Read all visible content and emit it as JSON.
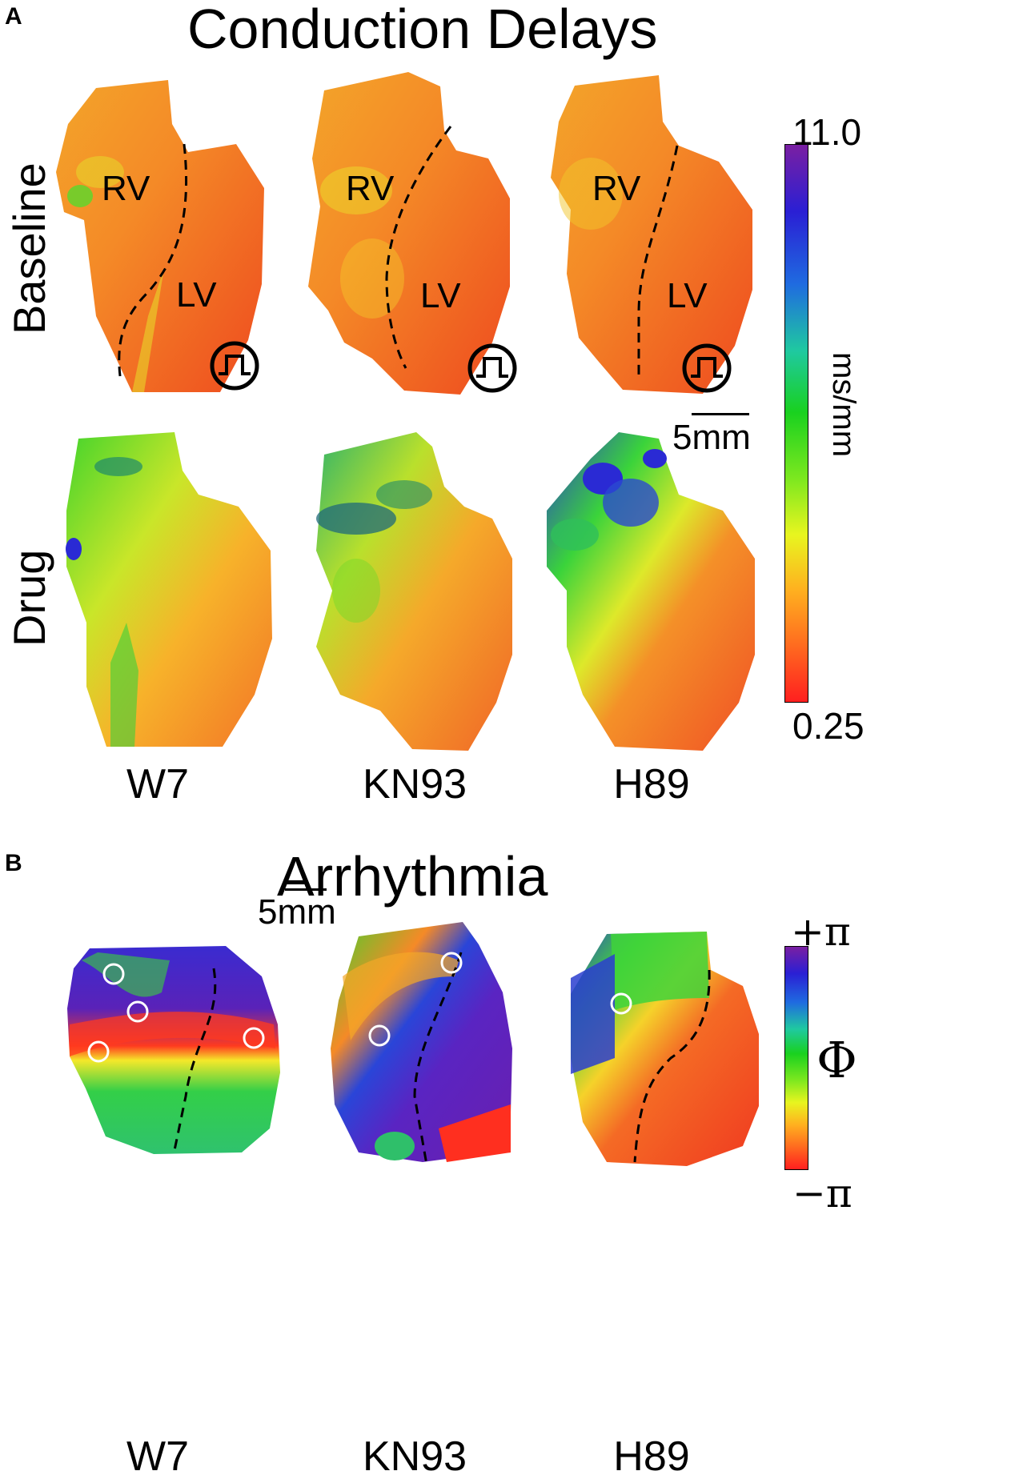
{
  "panel_a": {
    "letter": "A",
    "title": "Conduction Delays",
    "row_labels": [
      "Baseline",
      "Drug"
    ],
    "region_labels": {
      "rv": "RV",
      "lv": "LV"
    },
    "column_labels": [
      "W7",
      "KN93",
      "H89"
    ],
    "scale_bar": "5mm",
    "colorbar": {
      "max_label": "11.0",
      "min_label": "0.25",
      "unit": "ms/mm",
      "colors": [
        "#7a1fa2",
        "#2a1fd4",
        "#1f6be0",
        "#1fc9a0",
        "#19d11f",
        "#7de81f",
        "#e8f51f",
        "#ffb01f",
        "#ff6a1f",
        "#ff1f1f"
      ]
    }
  },
  "panel_b": {
    "letter": "B",
    "title": "Arrhythmia",
    "column_labels": [
      "W7",
      "KN93",
      "H89"
    ],
    "scale_bar": "5mm",
    "colorbar": {
      "max_label": "+π",
      "min_label": "−π",
      "unit": "Φ",
      "colors": [
        "#7a1fa2",
        "#2a1fd4",
        "#1f6be0",
        "#1fc9a0",
        "#19d11f",
        "#7de81f",
        "#e8f51f",
        "#ffb01f",
        "#ff6a1f",
        "#ff1f1f"
      ]
    }
  }
}
